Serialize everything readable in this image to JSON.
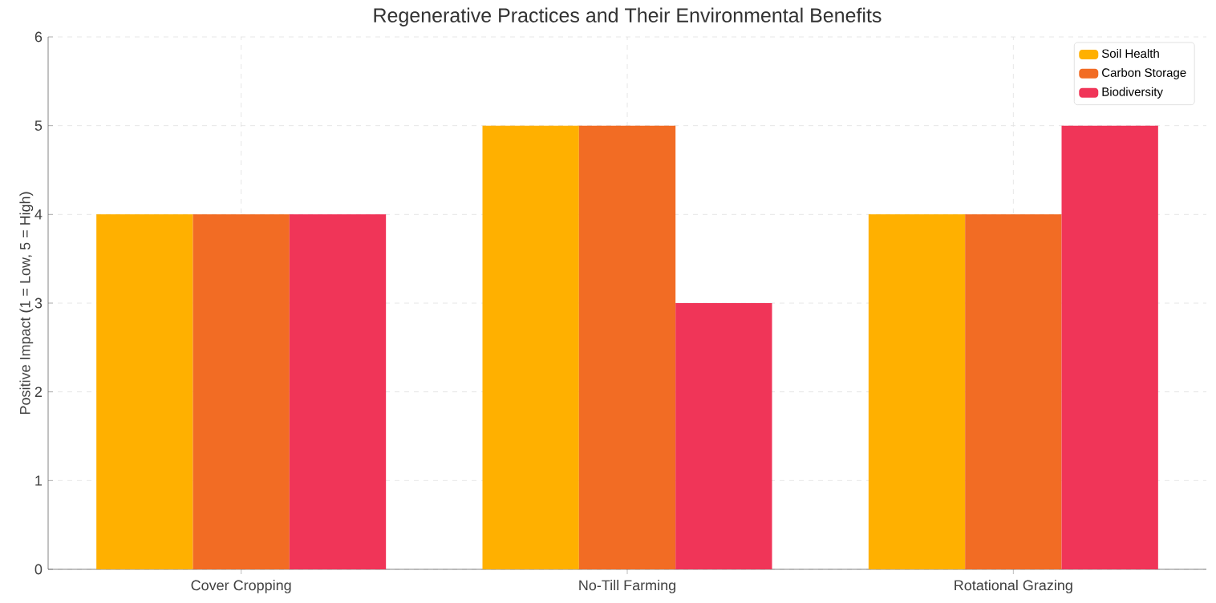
{
  "chart_data": {
    "type": "bar",
    "title": "Regenerative Practices and Their Environmental Benefits",
    "ylabel": "Positive Impact (1 = Low, 5 = High)",
    "categories": [
      "Cover Cropping",
      "No-Till Farming",
      "Rotational Grazing"
    ],
    "series": [
      {
        "name": "Soil Health",
        "color": "#ffb000",
        "values": [
          4,
          5,
          4
        ]
      },
      {
        "name": "Carbon Storage",
        "color": "#f26c24",
        "values": [
          4,
          5,
          4
        ]
      },
      {
        "name": "Biodiversity",
        "color": "#f03558",
        "values": [
          4,
          3,
          5
        ]
      }
    ],
    "ylim": [
      0,
      6
    ],
    "yticks": [
      0,
      1,
      2,
      3,
      4,
      5,
      6
    ],
    "grid": true,
    "legend": "top right"
  }
}
